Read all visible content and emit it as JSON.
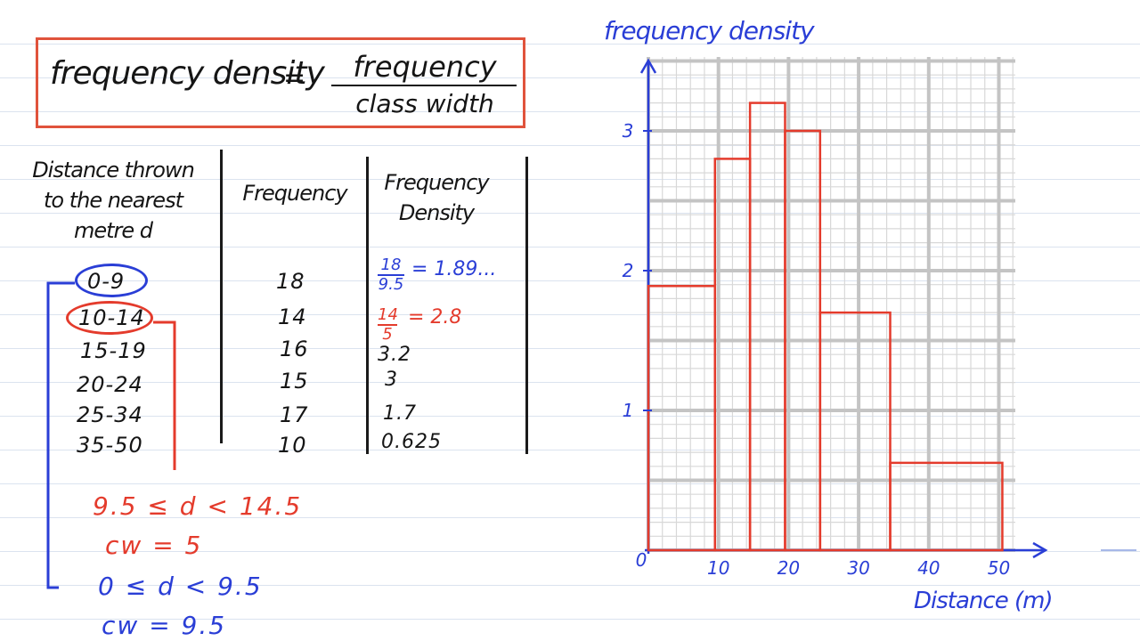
{
  "formula": {
    "lhs": "frequency density",
    "equals": "=",
    "numerator": "frequency",
    "denominator": "class width"
  },
  "table": {
    "headers": [
      "Distance thrown to the nearest metre d",
      "Frequency",
      "Frequency Density"
    ],
    "header_lines": {
      "col1": [
        "Distance thrown",
        "to the nearest",
        "metre d"
      ],
      "col3": [
        "Frequency",
        "Density"
      ]
    },
    "rows": [
      {
        "distance": "0-9",
        "frequency": "18",
        "density_num": "18",
        "density_den": "9.5",
        "density_rest": "= 1.89..."
      },
      {
        "distance": "10-14",
        "frequency": "14",
        "density_num": "14",
        "density_den": "5",
        "density_rest": "= 2.8"
      },
      {
        "distance": "15-19",
        "frequency": "16",
        "density": "3.2"
      },
      {
        "distance": "20-24",
        "frequency": "15",
        "density": "3"
      },
      {
        "distance": "25-34",
        "frequency": "17",
        "density": "1.7"
      },
      {
        "distance": "35-50",
        "frequency": "10",
        "density": "0.625"
      }
    ]
  },
  "notes": {
    "red_bound": "9.5 ≤ d < 14.5",
    "red_cw": "cw = 5",
    "blue_bound": "0 ≤ d < 9.5",
    "blue_cw": "cw = 9.5"
  },
  "chart_data": {
    "type": "bar",
    "title": "",
    "xlabel": "Distance (m)",
    "ylabel": "frequency density",
    "xlim": [
      0,
      52
    ],
    "ylim": [
      0,
      3.5
    ],
    "x_ticks": [
      "10",
      "20",
      "30",
      "40",
      "50"
    ],
    "y_ticks": [
      "1",
      "2",
      "3"
    ],
    "origin_label": "0",
    "bins": [
      {
        "x0": 0,
        "x1": 9.5,
        "height": 1.89
      },
      {
        "x0": 9.5,
        "x1": 14.5,
        "height": 2.8
      },
      {
        "x0": 14.5,
        "x1": 19.5,
        "height": 3.2
      },
      {
        "x0": 19.5,
        "x1": 24.5,
        "height": 3
      },
      {
        "x0": 24.5,
        "x1": 34.5,
        "height": 1.7
      },
      {
        "x0": 34.5,
        "x1": 50.5,
        "height": 0.625
      }
    ],
    "grid": true
  },
  "colors": {
    "red": "#e43b2c",
    "blue": "#2a3ed6",
    "box_border": "#e0533c",
    "grid_major": "#c4c4c4",
    "grid_minor": "#d8d8d8"
  }
}
